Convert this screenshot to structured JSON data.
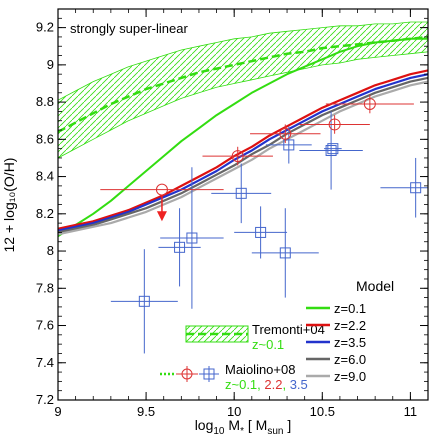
{
  "chart_data": {
    "type": "line",
    "annotation": "strongly super-linear",
    "xlabel": {
      "base": "log",
      "sub1": "10",
      "mid": " M",
      "sub2": "*",
      "rest": " [ M",
      "sub3": "sun",
      "end": " ]"
    },
    "ylabel": "12 + log₁₀(O/H)",
    "xlim": [
      9,
      11.1
    ],
    "ylim": [
      7.2,
      9.3
    ],
    "xticks": [
      9,
      9.5,
      10,
      10.5,
      11
    ],
    "xtick_labels": [
      "9",
      "9.5",
      "10",
      "10.5",
      "11"
    ],
    "yticks": [
      7.2,
      7.4,
      7.6,
      7.8,
      8.0,
      8.2,
      8.4,
      8.6,
      8.8,
      9.0,
      9.2
    ],
    "ytick_labels": [
      "7.2",
      "7.4",
      "7.6",
      "7.8",
      "8",
      "8.2",
      "8.4",
      "8.6",
      "8.8",
      "9",
      "9.2"
    ],
    "legend_title": "Model",
    "series": [
      {
        "name": "z=0.1",
        "color": "#33dd11",
        "width": 2,
        "x": [
          9.0,
          9.1,
          9.2,
          9.3,
          9.4,
          9.5,
          9.6,
          9.7,
          9.8,
          9.9,
          10.0,
          10.1,
          10.2,
          10.3,
          10.4,
          10.5,
          10.6,
          10.7,
          10.8,
          10.9,
          11.0,
          11.1
        ],
        "y": [
          8.08,
          8.14,
          8.2,
          8.27,
          8.35,
          8.43,
          8.51,
          8.59,
          8.66,
          8.73,
          8.79,
          8.85,
          8.9,
          8.95,
          8.99,
          9.03,
          9.07,
          9.1,
          9.12,
          9.13,
          9.14,
          9.14
        ]
      },
      {
        "name": "z=2.2",
        "color": "#dd1111",
        "width": 2.2,
        "x": [
          9.0,
          9.1,
          9.2,
          9.3,
          9.4,
          9.5,
          9.6,
          9.7,
          9.8,
          9.9,
          10.0,
          10.1,
          10.2,
          10.3,
          10.4,
          10.5,
          10.6,
          10.7,
          10.8,
          10.9,
          11.0,
          11.1
        ],
        "y": [
          8.12,
          8.14,
          8.16,
          8.19,
          8.22,
          8.26,
          8.3,
          8.35,
          8.4,
          8.45,
          8.51,
          8.56,
          8.62,
          8.67,
          8.72,
          8.77,
          8.81,
          8.85,
          8.89,
          8.92,
          8.95,
          8.97
        ]
      },
      {
        "name": "z=3.5",
        "color": "#2233cc",
        "width": 2.2,
        "x": [
          9.0,
          9.1,
          9.2,
          9.3,
          9.4,
          9.5,
          9.6,
          9.7,
          9.8,
          9.9,
          10.0,
          10.1,
          10.2,
          10.3,
          10.4,
          10.5,
          10.6,
          10.7,
          10.8,
          10.9,
          11.0,
          11.1
        ],
        "y": [
          8.11,
          8.13,
          8.15,
          8.18,
          8.21,
          8.25,
          8.29,
          8.33,
          8.38,
          8.43,
          8.49,
          8.54,
          8.6,
          8.65,
          8.7,
          8.75,
          8.79,
          8.83,
          8.87,
          8.9,
          8.93,
          8.95
        ]
      },
      {
        "name": "z=6.0",
        "color": "#666666",
        "width": 2.2,
        "x": [
          9.0,
          9.1,
          9.2,
          9.3,
          9.4,
          9.5,
          9.6,
          9.7,
          9.8,
          9.9,
          10.0,
          10.1,
          10.2,
          10.3,
          10.4,
          10.5,
          10.6,
          10.7,
          10.8,
          10.9,
          11.0,
          11.1
        ],
        "y": [
          8.1,
          8.12,
          8.14,
          8.17,
          8.2,
          8.23,
          8.27,
          8.31,
          8.36,
          8.41,
          8.46,
          8.52,
          8.57,
          8.63,
          8.68,
          8.73,
          8.77,
          8.81,
          8.85,
          8.88,
          8.91,
          8.93
        ]
      },
      {
        "name": "z=9.0",
        "color": "#aaaaaa",
        "width": 2.2,
        "x": [
          9.0,
          9.1,
          9.2,
          9.3,
          9.4,
          9.5,
          9.6,
          9.7,
          9.8,
          9.9,
          10.0,
          10.1,
          10.2,
          10.3,
          10.4,
          10.5,
          10.6,
          10.7,
          10.8,
          10.9,
          11.0,
          11.1
        ],
        "y": [
          8.09,
          8.11,
          8.13,
          8.15,
          8.18,
          8.21,
          8.25,
          8.29,
          8.34,
          8.39,
          8.44,
          8.49,
          8.55,
          8.6,
          8.65,
          8.7,
          8.75,
          8.79,
          8.83,
          8.86,
          8.89,
          8.91
        ]
      }
    ],
    "tremonti04": {
      "name": "Tremonti+04",
      "sub": "z~0.1",
      "color": "#33dd11",
      "x": [
        9.0,
        9.1,
        9.2,
        9.3,
        9.4,
        9.5,
        9.6,
        9.7,
        9.8,
        9.9,
        10.0,
        10.1,
        10.2,
        10.3,
        10.4,
        10.5,
        10.6,
        10.7,
        10.8,
        10.9,
        11.0,
        11.1
      ],
      "median": [
        8.64,
        8.69,
        8.74,
        8.79,
        8.83,
        8.87,
        8.9,
        8.93,
        8.96,
        8.98,
        9.0,
        9.02,
        9.04,
        9.06,
        9.07,
        9.09,
        9.1,
        9.11,
        9.12,
        9.13,
        9.14,
        9.15
      ],
      "upper": [
        8.81,
        8.86,
        8.91,
        8.95,
        8.99,
        9.02,
        9.05,
        9.08,
        9.1,
        9.12,
        9.14,
        9.15,
        9.17,
        9.18,
        9.19,
        9.2,
        9.21,
        9.21,
        9.22,
        9.22,
        9.23,
        9.23
      ],
      "lower": [
        8.5,
        8.55,
        8.6,
        8.65,
        8.7,
        8.74,
        8.78,
        8.82,
        8.85,
        8.88,
        8.9,
        8.92,
        8.94,
        8.96,
        8.98,
        9.0,
        9.01,
        9.03,
        9.04,
        9.05,
        9.06,
        9.07
      ]
    },
    "maiolino08": {
      "name": "Maiolino+08",
      "sub_parts": [
        "z~0.1, ",
        "2.2",
        ", ",
        "3.5"
      ],
      "z22": {
        "color": "#dd3333",
        "points": [
          {
            "x": 9.59,
            "y": 8.33,
            "xerr": 0.35,
            "yerr": 0.0,
            "upper_limit": true
          },
          {
            "x": 10.02,
            "y": 8.51,
            "xerr": 0.2,
            "yerr": 0.05
          },
          {
            "x": 10.29,
            "y": 8.63,
            "xerr": 0.2,
            "yerr": 0.05
          },
          {
            "x": 10.57,
            "y": 8.68,
            "xerr": 0.2,
            "yerr": 0.05
          },
          {
            "x": 10.77,
            "y": 8.79,
            "xerr": 0.25,
            "yerr": 0.05
          }
        ]
      },
      "z35": {
        "color": "#4466cc",
        "points": [
          {
            "x": 9.49,
            "y": 7.73,
            "xerr": 0.19,
            "yerr": 0.28
          },
          {
            "x": 9.69,
            "y": 8.02,
            "xerr": 0.12,
            "yerr": 0.21
          },
          {
            "x": 9.76,
            "y": 8.07,
            "xerr": 0.18,
            "yerr": 0.38
          },
          {
            "x": 10.04,
            "y": 8.31,
            "xerr": 0.17,
            "yerr": 0.16
          },
          {
            "x": 10.15,
            "y": 8.1,
            "xerr": 0.15,
            "yerr": 0.14
          },
          {
            "x": 10.29,
            "y": 7.99,
            "xerr": 0.19,
            "yerr": 0.24
          },
          {
            "x": 10.31,
            "y": 8.57,
            "xerr": 0.13,
            "yerr": 0.1
          },
          {
            "x": 10.55,
            "y": 8.54,
            "xerr": 0.18,
            "yerr": 0.21
          },
          {
            "x": 11.03,
            "y": 8.34,
            "xerr": 0.2,
            "yerr": 0.16
          },
          {
            "x": 10.56,
            "y": 8.55,
            "xerr": 0.05,
            "yerr": 0.0
          }
        ]
      }
    }
  }
}
